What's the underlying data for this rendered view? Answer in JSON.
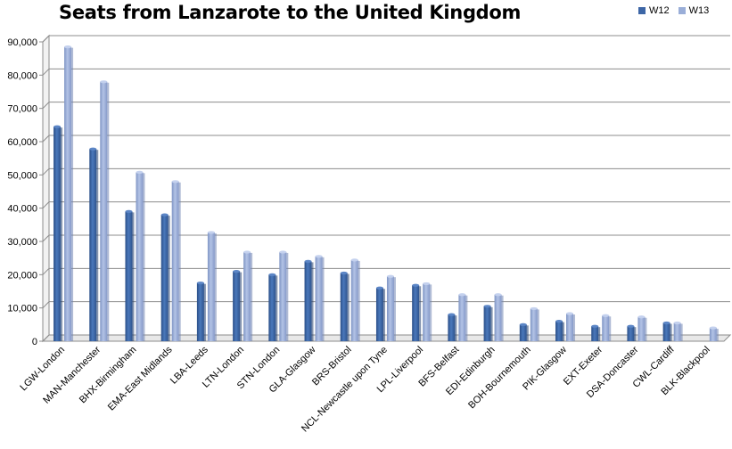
{
  "chart_data": {
    "type": "bar",
    "title": "Seats from Lanzarote to the United Kingdom",
    "xlabel": "",
    "ylabel": "",
    "ylim": [
      0,
      90000
    ],
    "yticks": [
      "0",
      "10,000",
      "20,000",
      "30,000",
      "40,000",
      "50,000",
      "60,000",
      "70,000",
      "80,000",
      "90,000"
    ],
    "grid": true,
    "legend_position": "top-right",
    "categories": [
      "LGW-London",
      "MAN-Manchester",
      "BHX-Birmingham",
      "EMA-East Midlands",
      "LBA-Leeds",
      "LTN-London",
      "STN-London",
      "GLA-Glasgow",
      "BRS-Bristol",
      "NCL-Newcastle upon Tyne",
      "LPL-Liverpool",
      "BFS-Belfast",
      "EDI-Edinburgh",
      "BOH-Bournemouth",
      "PIK-Glasgow",
      "EXT-Exeter",
      "DSA-Doncaster",
      "CWL-Cardiff",
      "BLK-Blackpool"
    ],
    "series": [
      {
        "name": "W12",
        "color": "#3d66a6",
        "values": [
          64500,
          57800,
          39000,
          38000,
          17500,
          21000,
          20000,
          24000,
          20500,
          16000,
          16800,
          8000,
          10500,
          5000,
          6000,
          4500,
          4500,
          5500,
          0
        ]
      },
      {
        "name": "W13",
        "color": "#9aaed8",
        "values": [
          88500,
          78000,
          50800,
          48000,
          32700,
          26800,
          26800,
          25500,
          24400,
          19500,
          17300,
          14000,
          14000,
          9800,
          8300,
          7700,
          7300,
          5500,
          4000
        ]
      }
    ]
  }
}
